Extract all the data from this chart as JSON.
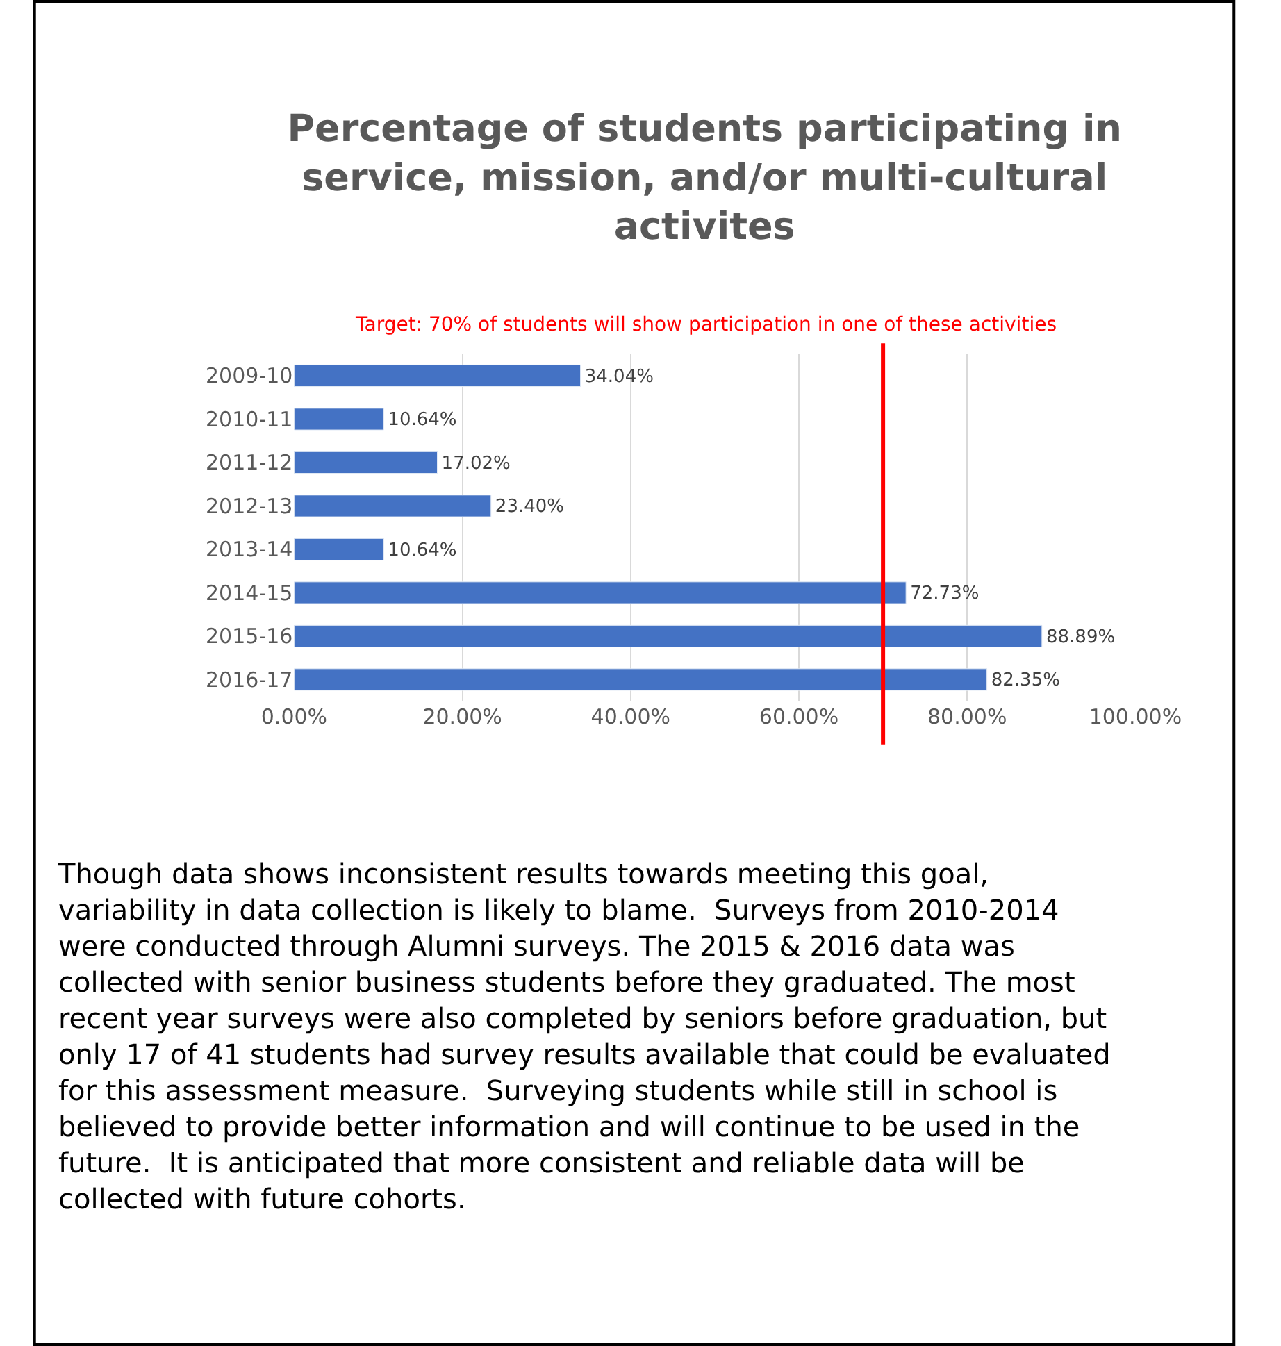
{
  "chart_data": {
    "type": "bar",
    "orientation": "horizontal",
    "title": "Percentage of students participating in\nservice, mission, and/or multi-cultural\nactivites",
    "categories": [
      "2009-10",
      "2010-11",
      "2011-12",
      "2012-13",
      "2013-14",
      "2014-15",
      "2015-16",
      "2016-17"
    ],
    "values": [
      34.04,
      10.64,
      17.02,
      23.4,
      10.64,
      72.73,
      88.89,
      82.35
    ],
    "value_labels": [
      "34.04%",
      "10.64%",
      "17.02%",
      "23.40%",
      "10.64%",
      "72.73%",
      "88.89%",
      "82.35%"
    ],
    "color": "#4472c4",
    "xlim": [
      0,
      100
    ],
    "xticks": [
      {
        "value": 0,
        "label": "0.00%"
      },
      {
        "value": 20,
        "label": "20.00%"
      },
      {
        "value": 40,
        "label": "40.00%"
      },
      {
        "value": 60,
        "label": "60.00%"
      },
      {
        "value": 80,
        "label": "80.00%"
      },
      {
        "value": 100,
        "label": "100.00%"
      }
    ],
    "grid": "x",
    "legend": false,
    "ref_lines": [
      {
        "axis": "x",
        "value": 70,
        "label": "Target: 70% of students will show participation in one of these activities",
        "color": "#ff0000"
      }
    ],
    "annotations": [
      "Though data shows inconsistent results towards meeting this goal,\nvariability in data collection is likely to blame.  Surveys from 2010-2014\nwere conducted through Alumni surveys. The 2015 & 2016 data was\ncollected with senior business students before they graduated. The most\nrecent year surveys were also completed by seniors before graduation, but\nonly 17 of 41 students had survey results available that could be evaluated\nfor this assessment measure.  Surveying students while still in school is\nbelieved to provide better information and will continue to be used in the\nfuture.  It is anticipated that more consistent and reliable data will be\ncollected with future cohorts."
    ]
  }
}
